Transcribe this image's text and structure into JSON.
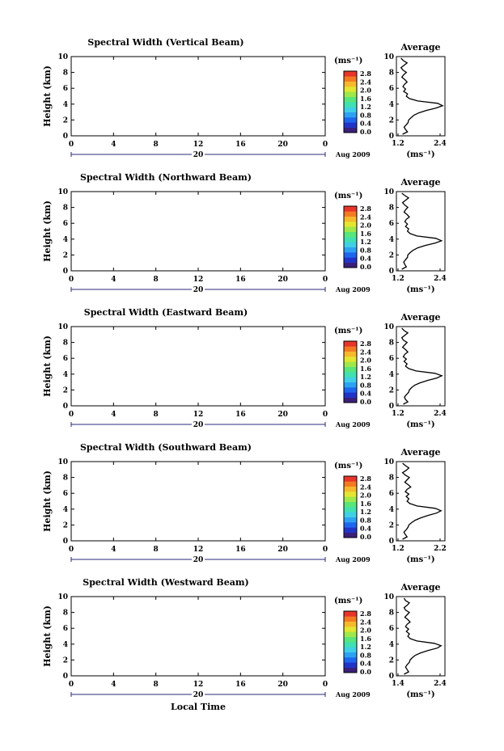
{
  "figure": {
    "xlabel_bottom": "Local Time"
  },
  "colormap": [
    "#3b1f7a",
    "#2134c8",
    "#1f66ee",
    "#2ea2f2",
    "#3fd0e6",
    "#41e0b0",
    "#58e57a",
    "#9fe84a",
    "#e3e631",
    "#f6b92c",
    "#f47a22",
    "#e8352a"
  ],
  "chart_data": [
    {
      "type": "heatmap",
      "title": "Spectral Width (Vertical Beam)",
      "ylabel": "Height (km)",
      "ylim": [
        0,
        10
      ],
      "yticks": [
        "0",
        "2",
        "4",
        "6",
        "8",
        "10"
      ],
      "xticks": [
        "0",
        "4",
        "8",
        "12",
        "16",
        "20",
        "0"
      ],
      "date_label": "20",
      "month_label": "Aug 2009",
      "colorbar": {
        "unit": "(ms⁻¹)",
        "ticks": [
          "0.0",
          "0.4",
          "0.8",
          "1.2",
          "1.6",
          "2.0",
          "2.4",
          "2.8"
        ]
      },
      "profile": {
        "title": "Average",
        "xticks": [
          "1.2",
          "2.4"
        ],
        "xlim": [
          1.2,
          2.4
        ],
        "xlabel": "(ms⁻¹)",
        "height": [
          0.2,
          0.5,
          0.8,
          1.1,
          1.4,
          1.7,
          2.0,
          2.3,
          2.6,
          2.9,
          3.2,
          3.5,
          3.8,
          4.1,
          4.4,
          4.7,
          5.0,
          5.3,
          5.6,
          5.9,
          6.2,
          6.5,
          6.8,
          7.1,
          7.4,
          7.7,
          8.0,
          8.3,
          8.6,
          8.9,
          9.2,
          9.5,
          9.8
        ],
        "value": [
          1.32,
          1.45,
          1.4,
          1.36,
          1.42,
          1.47,
          1.48,
          1.55,
          1.62,
          1.75,
          1.95,
          2.2,
          2.38,
          2.25,
          1.72,
          1.5,
          1.42,
          1.45,
          1.35,
          1.4,
          1.33,
          1.37,
          1.44,
          1.38,
          1.3,
          1.35,
          1.42,
          1.33,
          1.28,
          1.36,
          1.44,
          1.34,
          1.28
        ]
      }
    },
    {
      "type": "heatmap",
      "title": "Spectral Width (Northward Beam)",
      "ylabel": "Height (km)",
      "ylim": [
        0,
        10
      ],
      "yticks": [
        "0",
        "2",
        "4",
        "6",
        "8",
        "10"
      ],
      "xticks": [
        "0",
        "4",
        "8",
        "12",
        "16",
        "20",
        "0"
      ],
      "date_label": "20",
      "month_label": "Aug 2009",
      "colorbar": {
        "unit": "(ms⁻¹)",
        "ticks": [
          "0.0",
          "0.4",
          "0.8",
          "1.2",
          "1.6",
          "2.0",
          "2.4",
          "2.8"
        ]
      },
      "profile": {
        "title": "Average",
        "xticks": [
          "1.2",
          "2.4"
        ],
        "xlim": [
          1.2,
          2.4
        ],
        "xlabel": "(ms⁻¹)",
        "height": [
          0.2,
          0.5,
          0.8,
          1.1,
          1.4,
          1.7,
          2.0,
          2.3,
          2.6,
          2.9,
          3.2,
          3.5,
          3.8,
          4.1,
          4.4,
          4.7,
          5.0,
          5.3,
          5.6,
          5.9,
          6.2,
          6.5,
          6.8,
          7.1,
          7.4,
          7.7,
          8.0,
          8.3,
          8.6,
          8.9,
          9.2,
          9.5,
          9.8
        ],
        "value": [
          1.3,
          1.42,
          1.38,
          1.35,
          1.4,
          1.45,
          1.46,
          1.52,
          1.6,
          1.72,
          1.92,
          2.18,
          2.35,
          2.2,
          1.7,
          1.52,
          1.45,
          1.48,
          1.4,
          1.45,
          1.38,
          1.42,
          1.5,
          1.44,
          1.36,
          1.4,
          1.46,
          1.38,
          1.32,
          1.4,
          1.48,
          1.38,
          1.3
        ]
      }
    },
    {
      "type": "heatmap",
      "title": "Spectral Width (Eastward Beam)",
      "ylabel": "Height (km)",
      "ylim": [
        0,
        10
      ],
      "yticks": [
        "0",
        "2",
        "4",
        "6",
        "8",
        "10"
      ],
      "xticks": [
        "0",
        "4",
        "8",
        "12",
        "16",
        "20",
        "0"
      ],
      "date_label": "20",
      "month_label": "Aug 2009",
      "colorbar": {
        "unit": "(ms⁻¹)",
        "ticks": [
          "0.0",
          "0.4",
          "0.8",
          "1.2",
          "1.6",
          "2.0",
          "2.4",
          "2.8"
        ]
      },
      "profile": {
        "title": "Average",
        "xticks": [
          "1.2",
          "2.4"
        ],
        "xlim": [
          1.2,
          2.4
        ],
        "xlabel": "(ms⁻¹)",
        "height": [
          0.2,
          0.5,
          0.8,
          1.1,
          1.4,
          1.7,
          2.0,
          2.3,
          2.6,
          2.9,
          3.2,
          3.5,
          3.8,
          4.1,
          4.4,
          4.7,
          5.0,
          5.3,
          5.6,
          5.9,
          6.2,
          6.5,
          6.8,
          7.1,
          7.4,
          7.7,
          8.0,
          8.3,
          8.6,
          8.9,
          9.2,
          9.5,
          9.8
        ],
        "value": [
          1.34,
          1.46,
          1.4,
          1.37,
          1.42,
          1.48,
          1.5,
          1.56,
          1.64,
          1.78,
          1.98,
          2.22,
          2.36,
          2.18,
          1.68,
          1.48,
          1.4,
          1.44,
          1.36,
          1.42,
          1.34,
          1.38,
          1.46,
          1.4,
          1.32,
          1.38,
          1.44,
          1.34,
          1.3,
          1.38,
          1.46,
          1.36,
          1.3
        ]
      }
    },
    {
      "type": "heatmap",
      "title": "Spectral Width (Southward Beam)",
      "ylabel": "Height (km)",
      "ylim": [
        0,
        10
      ],
      "yticks": [
        "0",
        "2",
        "4",
        "6",
        "8",
        "10"
      ],
      "xticks": [
        "0",
        "4",
        "8",
        "12",
        "16",
        "20",
        "0"
      ],
      "date_label": "20",
      "month_label": "Aug 2009",
      "colorbar": {
        "unit": "(ms⁻¹)",
        "ticks": [
          "0.0",
          "0.4",
          "0.8",
          "1.2",
          "1.6",
          "2.0",
          "2.4",
          "2.8"
        ]
      },
      "profile": {
        "title": "Average",
        "xticks": [
          "1.2",
          "2.2"
        ],
        "xlim": [
          1.2,
          2.2
        ],
        "xlabel": "(ms⁻¹)",
        "height": [
          0.2,
          0.5,
          0.8,
          1.1,
          1.4,
          1.7,
          2.0,
          2.3,
          2.6,
          2.9,
          3.2,
          3.5,
          3.8,
          4.1,
          4.4,
          4.7,
          5.0,
          5.3,
          5.6,
          5.9,
          6.2,
          6.5,
          6.8,
          7.1,
          7.4,
          7.7,
          8.0,
          8.3,
          8.6,
          8.9,
          9.2,
          9.5,
          9.8
        ],
        "value": [
          1.3,
          1.4,
          1.36,
          1.33,
          1.38,
          1.42,
          1.44,
          1.5,
          1.58,
          1.7,
          1.86,
          2.05,
          2.15,
          2.02,
          1.62,
          1.46,
          1.4,
          1.44,
          1.38,
          1.44,
          1.36,
          1.4,
          1.48,
          1.42,
          1.35,
          1.4,
          1.45,
          1.36,
          1.3,
          1.38,
          1.44,
          1.36,
          1.3
        ]
      }
    },
    {
      "type": "heatmap",
      "title": "Spectral Width (Westward Beam)",
      "ylabel": "Height (km)",
      "ylim": [
        0,
        10
      ],
      "yticks": [
        "0",
        "2",
        "4",
        "6",
        "8",
        "10"
      ],
      "xticks": [
        "0",
        "4",
        "8",
        "12",
        "16",
        "20",
        "0"
      ],
      "date_label": "20",
      "month_label": "Aug 2009",
      "colorbar": {
        "unit": "(ms⁻¹)",
        "ticks": [
          "0.0",
          "0.4",
          "0.8",
          "1.2",
          "1.6",
          "2.0",
          "2.4",
          "2.8"
        ]
      },
      "profile": {
        "title": "Average",
        "xticks": [
          "1.4",
          "2.4"
        ],
        "xlim": [
          1.2,
          2.4
        ],
        "xlabel": "(ms⁻¹)",
        "height": [
          0.2,
          0.5,
          0.8,
          1.1,
          1.4,
          1.7,
          2.0,
          2.3,
          2.6,
          2.9,
          3.2,
          3.5,
          3.8,
          4.1,
          4.4,
          4.7,
          5.0,
          5.3,
          5.6,
          5.9,
          6.2,
          6.5,
          6.8,
          7.1,
          7.4,
          7.7,
          8.0,
          8.3,
          8.6,
          8.9,
          9.2,
          9.5,
          9.8
        ],
        "value": [
          1.36,
          1.48,
          1.44,
          1.4,
          1.44,
          1.5,
          1.52,
          1.58,
          1.66,
          1.8,
          2.0,
          2.24,
          2.34,
          2.16,
          1.7,
          1.52,
          1.46,
          1.5,
          1.42,
          1.48,
          1.4,
          1.44,
          1.52,
          1.46,
          1.38,
          1.44,
          1.5,
          1.4,
          1.36,
          1.44,
          1.5,
          1.4,
          1.36
        ]
      }
    }
  ]
}
